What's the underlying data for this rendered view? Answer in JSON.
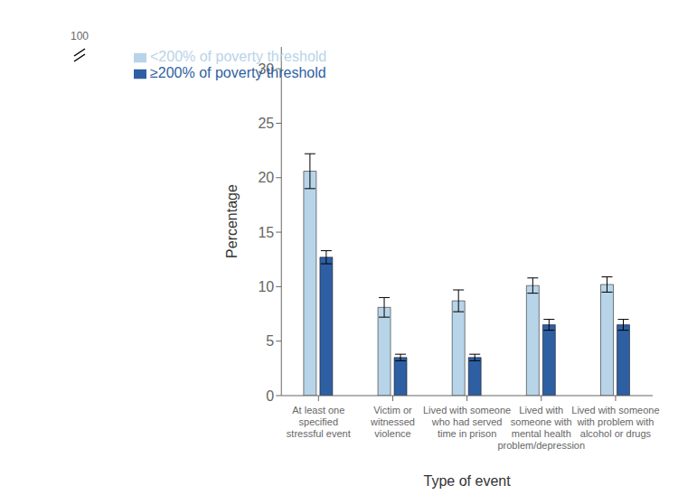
{
  "chart_data": {
    "type": "bar",
    "xlabel": "Type of event",
    "ylabel": "Percentage",
    "categories": [
      "At least one\nspecified\nstressful event",
      "Victim or\nwitnessed\nviolence",
      "Lived with someone\nwho had served\ntime in prison",
      "Lived with\nsomeone with\nmental health\nproblem/depression",
      "Lived with someone\nwith problem with\nalcohol or drugs"
    ],
    "series": [
      {
        "name": "<200% of poverty threshold",
        "color": "#b8d4e8",
        "values": [
          20.6,
          8.1,
          8.7,
          10.1,
          10.2
        ],
        "errors": [
          1.6,
          0.9,
          1.0,
          0.7,
          0.7
        ]
      },
      {
        "name": "≥200% of poverty threshold",
        "color": "#2E5FA3",
        "values": [
          12.7,
          3.5,
          3.5,
          6.5,
          6.5
        ],
        "errors": [
          0.6,
          0.3,
          0.3,
          0.5,
          0.5
        ]
      }
    ],
    "ylim": [
      0,
      32
    ],
    "yticks": [
      0,
      5,
      10,
      15,
      20,
      25,
      30
    ],
    "grid": false,
    "legend": "upper left",
    "annotations": [
      {
        "text": "100"
      }
    ]
  }
}
